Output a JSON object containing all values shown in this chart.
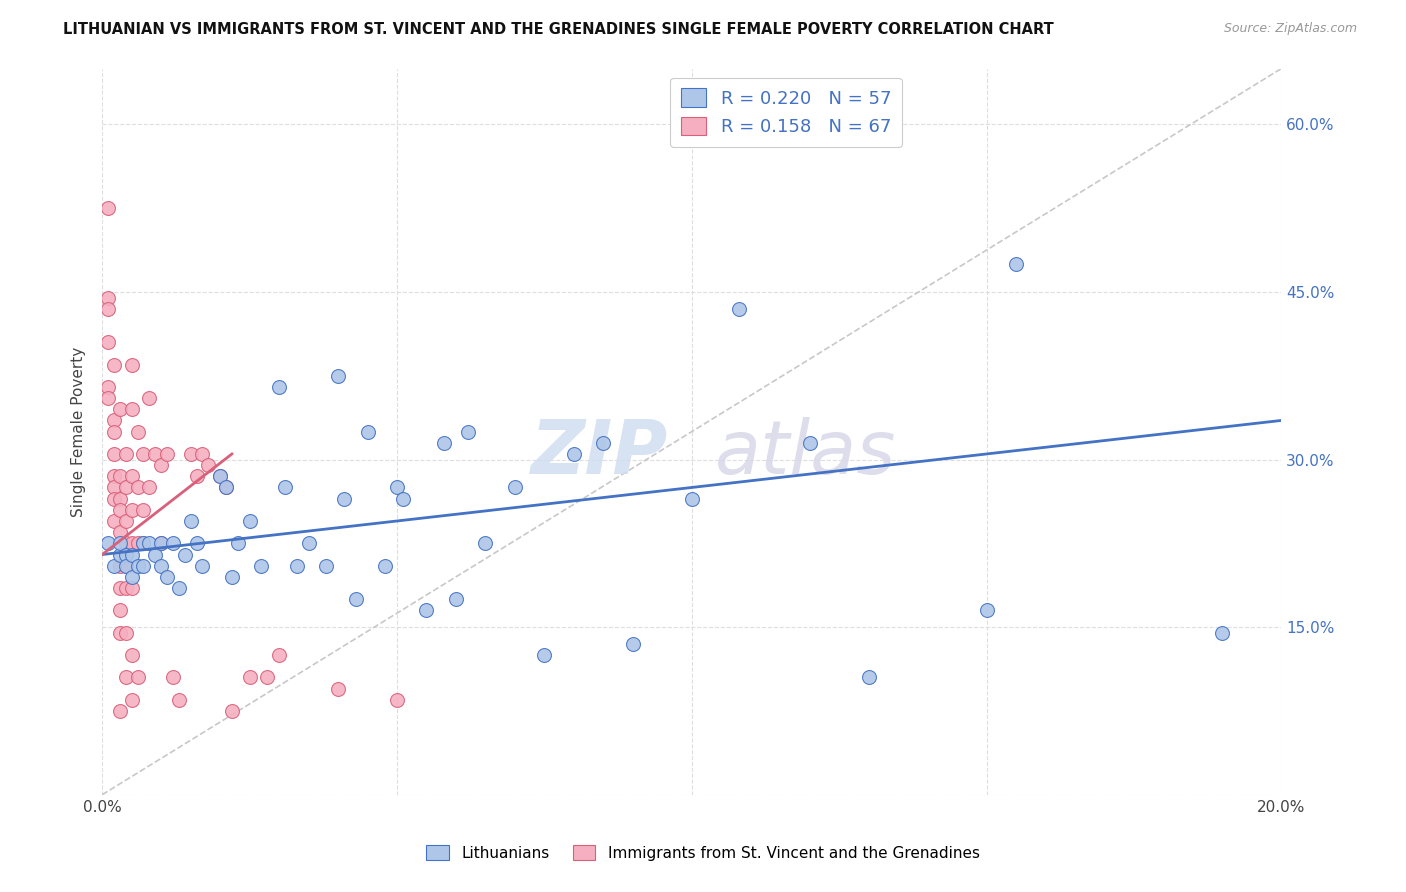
{
  "title": "LITHUANIAN VS IMMIGRANTS FROM ST. VINCENT AND THE GRENADINES SINGLE FEMALE POVERTY CORRELATION CHART",
  "source": "Source: ZipAtlas.com",
  "ylabel": "Single Female Poverty",
  "xlim": [
    0.0,
    0.2
  ],
  "ylim": [
    0.0,
    0.65
  ],
  "xticks": [
    0.0,
    0.05,
    0.1,
    0.15,
    0.2
  ],
  "yticks": [
    0.0,
    0.15,
    0.3,
    0.45,
    0.6
  ],
  "legend_r1": "0.220",
  "legend_n1": "57",
  "legend_r2": "0.158",
  "legend_n2": "67",
  "color_blue": "#aec6e8",
  "color_pink": "#f5afc0",
  "color_blue_line": "#4472c4",
  "color_pink_line": "#d9607a",
  "color_diagonal": "#c8c8c8",
  "watermark_zip": "ZIP",
  "watermark_atlas": "atlas",
  "blue_points": [
    [
      0.001,
      0.225
    ],
    [
      0.002,
      0.205
    ],
    [
      0.003,
      0.215
    ],
    [
      0.003,
      0.225
    ],
    [
      0.004,
      0.215
    ],
    [
      0.004,
      0.205
    ],
    [
      0.005,
      0.215
    ],
    [
      0.005,
      0.195
    ],
    [
      0.006,
      0.205
    ],
    [
      0.007,
      0.225
    ],
    [
      0.007,
      0.205
    ],
    [
      0.008,
      0.225
    ],
    [
      0.009,
      0.215
    ],
    [
      0.01,
      0.225
    ],
    [
      0.01,
      0.205
    ],
    [
      0.011,
      0.195
    ],
    [
      0.012,
      0.225
    ],
    [
      0.013,
      0.185
    ],
    [
      0.014,
      0.215
    ],
    [
      0.015,
      0.245
    ],
    [
      0.016,
      0.225
    ],
    [
      0.017,
      0.205
    ],
    [
      0.02,
      0.285
    ],
    [
      0.021,
      0.275
    ],
    [
      0.022,
      0.195
    ],
    [
      0.023,
      0.225
    ],
    [
      0.025,
      0.245
    ],
    [
      0.027,
      0.205
    ],
    [
      0.03,
      0.365
    ],
    [
      0.031,
      0.275
    ],
    [
      0.033,
      0.205
    ],
    [
      0.035,
      0.225
    ],
    [
      0.038,
      0.205
    ],
    [
      0.04,
      0.375
    ],
    [
      0.041,
      0.265
    ],
    [
      0.043,
      0.175
    ],
    [
      0.045,
      0.325
    ],
    [
      0.048,
      0.205
    ],
    [
      0.05,
      0.275
    ],
    [
      0.051,
      0.265
    ],
    [
      0.055,
      0.165
    ],
    [
      0.058,
      0.315
    ],
    [
      0.06,
      0.175
    ],
    [
      0.062,
      0.325
    ],
    [
      0.065,
      0.225
    ],
    [
      0.07,
      0.275
    ],
    [
      0.075,
      0.125
    ],
    [
      0.08,
      0.305
    ],
    [
      0.085,
      0.315
    ],
    [
      0.09,
      0.135
    ],
    [
      0.1,
      0.265
    ],
    [
      0.108,
      0.435
    ],
    [
      0.12,
      0.315
    ],
    [
      0.13,
      0.105
    ],
    [
      0.15,
      0.165
    ],
    [
      0.155,
      0.475
    ],
    [
      0.19,
      0.145
    ]
  ],
  "pink_points": [
    [
      0.001,
      0.525
    ],
    [
      0.001,
      0.445
    ],
    [
      0.001,
      0.435
    ],
    [
      0.001,
      0.405
    ],
    [
      0.001,
      0.365
    ],
    [
      0.001,
      0.355
    ],
    [
      0.002,
      0.385
    ],
    [
      0.002,
      0.335
    ],
    [
      0.002,
      0.325
    ],
    [
      0.002,
      0.305
    ],
    [
      0.002,
      0.285
    ],
    [
      0.002,
      0.275
    ],
    [
      0.002,
      0.265
    ],
    [
      0.002,
      0.245
    ],
    [
      0.003,
      0.345
    ],
    [
      0.003,
      0.285
    ],
    [
      0.003,
      0.265
    ],
    [
      0.003,
      0.255
    ],
    [
      0.003,
      0.235
    ],
    [
      0.003,
      0.205
    ],
    [
      0.003,
      0.185
    ],
    [
      0.003,
      0.165
    ],
    [
      0.003,
      0.145
    ],
    [
      0.003,
      0.075
    ],
    [
      0.004,
      0.305
    ],
    [
      0.004,
      0.275
    ],
    [
      0.004,
      0.245
    ],
    [
      0.004,
      0.225
    ],
    [
      0.004,
      0.205
    ],
    [
      0.004,
      0.185
    ],
    [
      0.004,
      0.145
    ],
    [
      0.004,
      0.105
    ],
    [
      0.005,
      0.385
    ],
    [
      0.005,
      0.345
    ],
    [
      0.005,
      0.285
    ],
    [
      0.005,
      0.255
    ],
    [
      0.005,
      0.225
    ],
    [
      0.005,
      0.185
    ],
    [
      0.005,
      0.125
    ],
    [
      0.005,
      0.085
    ],
    [
      0.006,
      0.325
    ],
    [
      0.006,
      0.275
    ],
    [
      0.006,
      0.225
    ],
    [
      0.006,
      0.105
    ],
    [
      0.007,
      0.305
    ],
    [
      0.007,
      0.255
    ],
    [
      0.007,
      0.225
    ],
    [
      0.008,
      0.355
    ],
    [
      0.008,
      0.275
    ],
    [
      0.009,
      0.305
    ],
    [
      0.01,
      0.295
    ],
    [
      0.01,
      0.225
    ],
    [
      0.011,
      0.305
    ],
    [
      0.012,
      0.105
    ],
    [
      0.013,
      0.085
    ],
    [
      0.015,
      0.305
    ],
    [
      0.016,
      0.285
    ],
    [
      0.017,
      0.305
    ],
    [
      0.018,
      0.295
    ],
    [
      0.02,
      0.285
    ],
    [
      0.021,
      0.275
    ],
    [
      0.022,
      0.075
    ],
    [
      0.025,
      0.105
    ],
    [
      0.028,
      0.105
    ],
    [
      0.03,
      0.125
    ],
    [
      0.04,
      0.095
    ],
    [
      0.05,
      0.085
    ]
  ],
  "blue_line_x": [
    0.0,
    0.2
  ],
  "blue_line_y": [
    0.215,
    0.335
  ],
  "pink_line_x": [
    0.0,
    0.022
  ],
  "pink_line_y": [
    0.215,
    0.305
  ],
  "diag_line_x": [
    0.0,
    0.2
  ],
  "diag_line_y": [
    0.0,
    0.65
  ]
}
